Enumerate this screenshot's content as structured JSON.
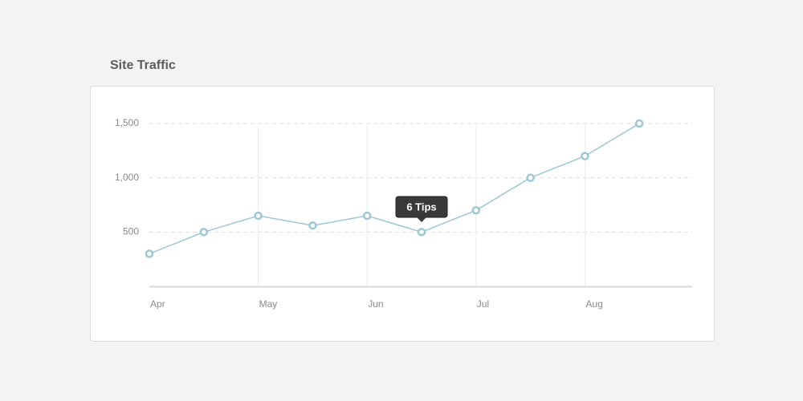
{
  "chart_data": {
    "type": "line",
    "title": "Site Traffic",
    "categories": [
      "Apr",
      null,
      "May",
      null,
      "Jun",
      null,
      "Jul",
      null,
      "Aug",
      null
    ],
    "series": [
      {
        "name": "Site Traffic",
        "color": "#9cc7d5",
        "values": [
          300,
          500,
          650,
          560,
          650,
          500,
          700,
          1000,
          1200,
          1500
        ]
      }
    ],
    "ylim": [
      0,
      1500
    ],
    "yticks": [
      {
        "value": 500,
        "label": "500"
      },
      {
        "value": 1000,
        "label": "1,000"
      },
      {
        "value": 1500,
        "label": "1,500"
      }
    ],
    "grid": true,
    "annotation": "6 Tips"
  }
}
